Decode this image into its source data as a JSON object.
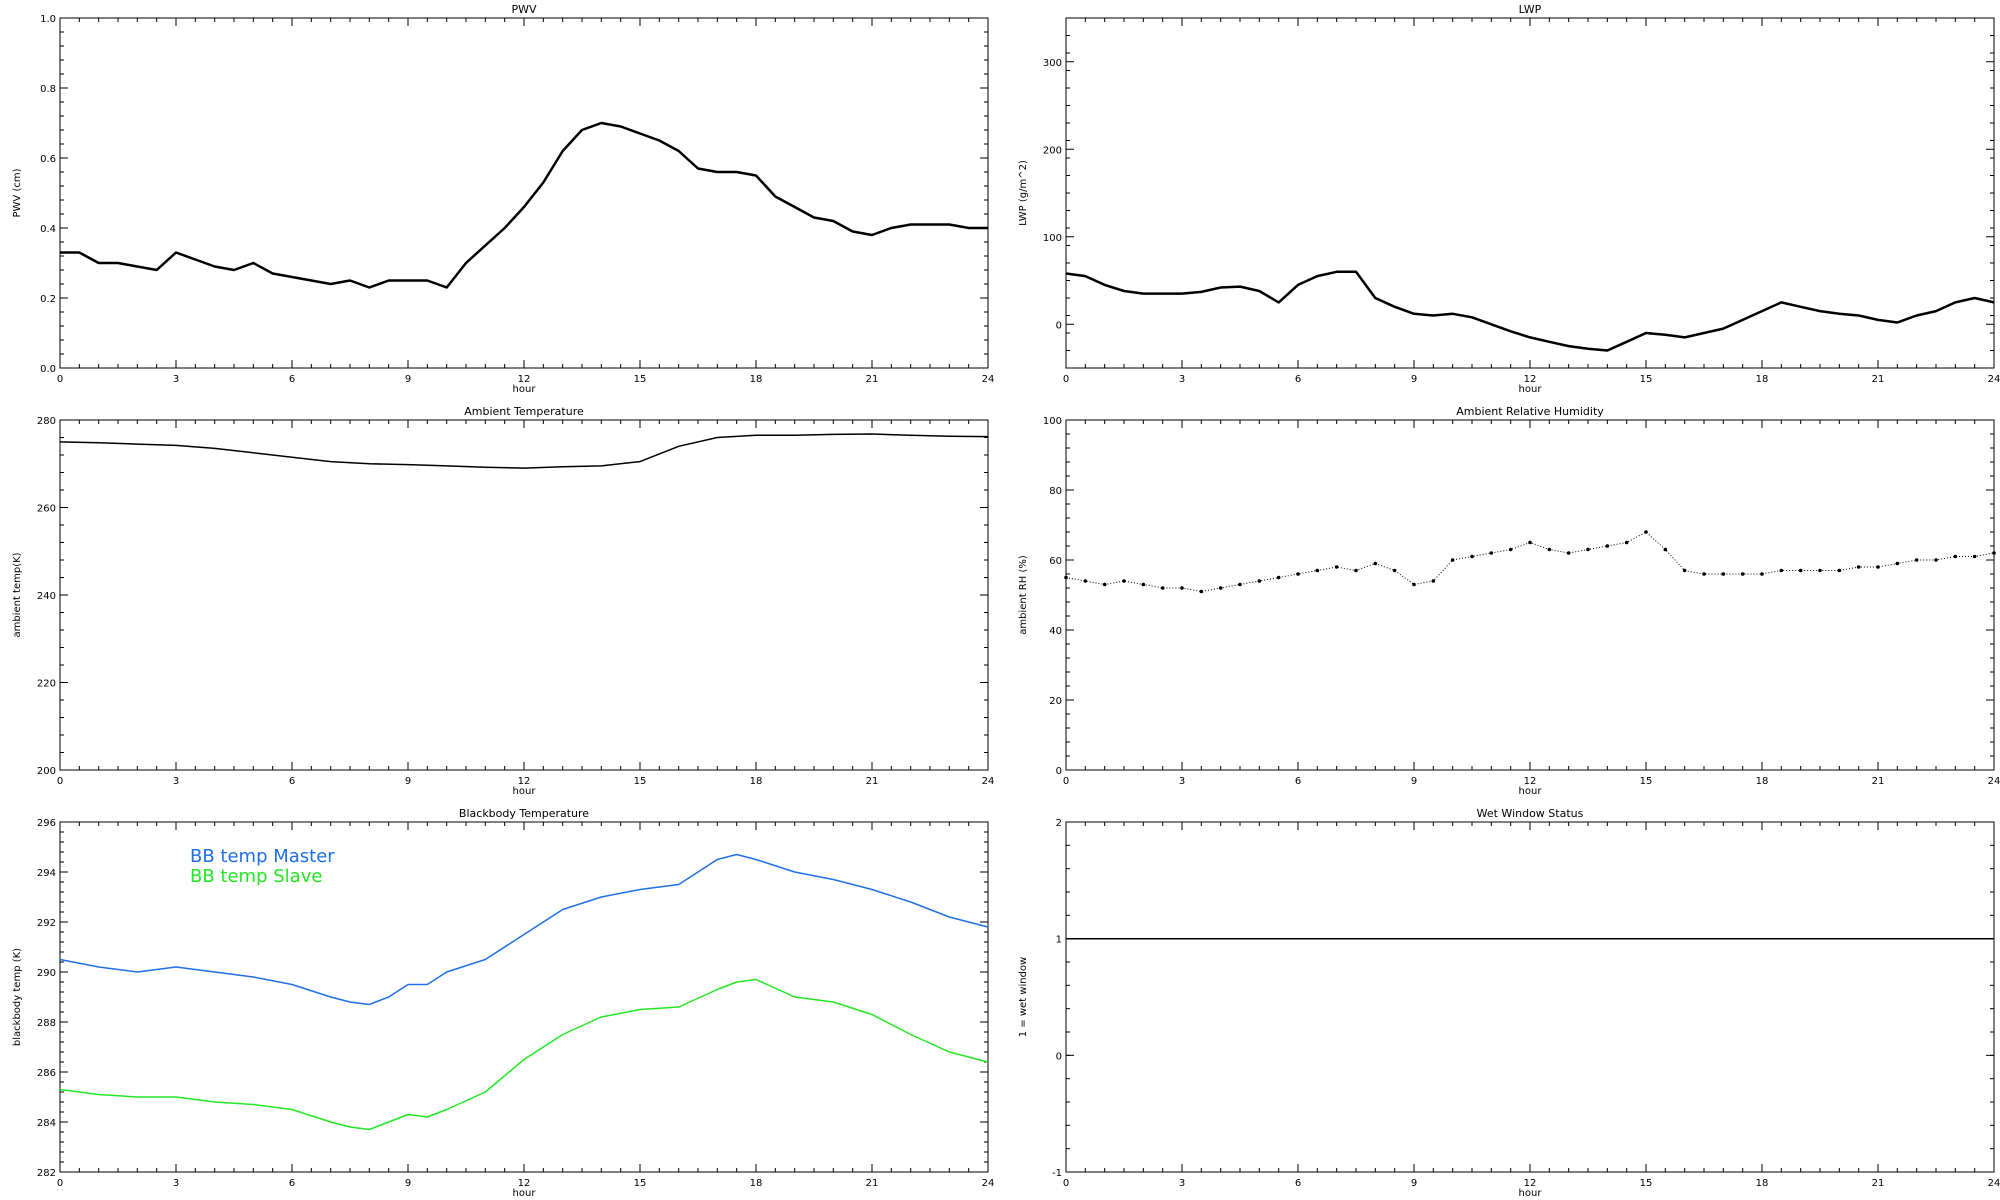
{
  "chart_data": [
    {
      "id": "pwv",
      "type": "line",
      "title": "PWV",
      "xlabel": "hour",
      "ylabel": "PWV (cm)",
      "xlim": [
        0,
        24
      ],
      "ylim": [
        0.0,
        1.0
      ],
      "xticks": [
        0,
        3,
        6,
        9,
        12,
        15,
        18,
        21,
        24
      ],
      "xtick_labels": [
        "0",
        "3",
        "6",
        "9",
        "12",
        "15",
        "18",
        "21",
        "24"
      ],
      "yticks": [
        0.0,
        0.2,
        0.4,
        0.6,
        0.8,
        1.0
      ],
      "ytick_labels": [
        "0.0",
        "0.2",
        "0.4",
        "0.6",
        "0.8",
        "1.0"
      ],
      "series": [
        {
          "color": "#000000",
          "x": [
            0,
            0.5,
            1,
            1.5,
            2,
            2.5,
            3,
            3.5,
            4,
            4.5,
            5,
            5.5,
            6,
            6.5,
            7,
            7.5,
            8,
            8.5,
            9,
            9.5,
            10,
            10.5,
            11,
            11.5,
            12,
            12.5,
            13,
            13.5,
            14,
            14.5,
            15,
            15.5,
            16,
            16.5,
            17,
            17.5,
            18,
            18.5,
            19,
            19.5,
            20,
            20.5,
            21,
            21.5,
            22,
            22.5,
            23,
            23.5,
            24
          ],
          "y": [
            0.33,
            0.33,
            0.3,
            0.3,
            0.29,
            0.28,
            0.33,
            0.31,
            0.29,
            0.28,
            0.3,
            0.27,
            0.26,
            0.25,
            0.24,
            0.25,
            0.23,
            0.25,
            0.25,
            0.25,
            0.23,
            0.3,
            0.35,
            0.4,
            0.46,
            0.53,
            0.62,
            0.68,
            0.7,
            0.69,
            0.67,
            0.65,
            0.62,
            0.57,
            0.56,
            0.56,
            0.55,
            0.49,
            0.46,
            0.43,
            0.42,
            0.39,
            0.38,
            0.4,
            0.41,
            0.41,
            0.41,
            0.4,
            0.4
          ]
        }
      ]
    },
    {
      "id": "lwp",
      "type": "line",
      "title": "LWP",
      "xlabel": "hour",
      "ylabel": "LWP (g/m^2)",
      "xlim": [
        0,
        24
      ],
      "ylim": [
        -50,
        350
      ],
      "xticks": [
        0,
        3,
        6,
        9,
        12,
        15,
        18,
        21,
        24
      ],
      "xtick_labels": [
        "0",
        "3",
        "6",
        "9",
        "12",
        "15",
        "18",
        "21",
        "24"
      ],
      "yticks": [
        0,
        100,
        200,
        300
      ],
      "ytick_labels": [
        "0",
        "100",
        "200",
        "300"
      ],
      "series": [
        {
          "color": "#000000",
          "x": [
            0,
            0.5,
            1,
            1.5,
            2,
            2.5,
            3,
            3.5,
            4,
            4.5,
            5,
            5.5,
            6,
            6.5,
            7,
            7.5,
            8,
            8.5,
            9,
            9.5,
            10,
            10.5,
            11,
            11.5,
            12,
            12.5,
            13,
            13.5,
            14,
            14.5,
            15,
            15.5,
            16,
            16.5,
            17,
            17.5,
            18,
            18.5,
            19,
            19.5,
            20,
            20.5,
            21,
            21.5,
            22,
            22.5,
            23,
            23.5,
            24
          ],
          "y": [
            58,
            55,
            45,
            38,
            35,
            35,
            35,
            37,
            42,
            43,
            38,
            25,
            45,
            55,
            60,
            60,
            30,
            20,
            12,
            10,
            12,
            8,
            0,
            -8,
            -15,
            -20,
            -25,
            -28,
            -30,
            -20,
            -10,
            -12,
            -15,
            -10,
            -5,
            5,
            15,
            25,
            20,
            15,
            12,
            10,
            5,
            2,
            10,
            15,
            25,
            30,
            25
          ]
        }
      ]
    },
    {
      "id": "ambient-temp",
      "type": "line",
      "title": "Ambient Temperature",
      "xlabel": "hour",
      "ylabel": "ambient temp(K)",
      "xlim": [
        0,
        24
      ],
      "ylim": [
        200,
        280
      ],
      "xticks": [
        0,
        3,
        6,
        9,
        12,
        15,
        18,
        21,
        24
      ],
      "xtick_labels": [
        "0",
        "3",
        "6",
        "9",
        "12",
        "15",
        "18",
        "21",
        "24"
      ],
      "yticks": [
        200,
        220,
        240,
        260,
        280
      ],
      "ytick_labels": [
        "200",
        "220",
        "240",
        "260",
        "280"
      ],
      "series": [
        {
          "color": "#000000",
          "x": [
            0,
            1,
            2,
            3,
            4,
            5,
            6,
            7,
            8,
            9,
            10,
            11,
            12,
            13,
            14,
            15,
            16,
            17,
            18,
            19,
            20,
            21,
            22,
            23,
            24
          ],
          "y": [
            275,
            274.8,
            274.5,
            274.2,
            273.5,
            272.5,
            271.5,
            270.5,
            270,
            269.8,
            269.5,
            269.2,
            269,
            269.3,
            269.5,
            270.5,
            274,
            276,
            276.5,
            276.5,
            276.7,
            276.8,
            276.5,
            276.3,
            276.2
          ]
        }
      ]
    },
    {
      "id": "ambient-rh",
      "type": "scatter",
      "title": "Ambient Relative Humidity",
      "xlabel": "hour",
      "ylabel": "ambient RH (%)",
      "xlim": [
        0,
        24
      ],
      "ylim": [
        0,
        100
      ],
      "xticks": [
        0,
        3,
        6,
        9,
        12,
        15,
        18,
        21,
        24
      ],
      "xtick_labels": [
        "0",
        "3",
        "6",
        "9",
        "12",
        "15",
        "18",
        "21",
        "24"
      ],
      "yticks": [
        0,
        20,
        40,
        60,
        80,
        100
      ],
      "ytick_labels": [
        "0",
        "20",
        "40",
        "60",
        "80",
        "100"
      ],
      "series": [
        {
          "color": "#000000",
          "x": [
            0,
            0.5,
            1,
            1.5,
            2,
            2.5,
            3,
            3.5,
            4,
            4.5,
            5,
            5.5,
            6,
            6.5,
            7,
            7.5,
            8,
            8.5,
            9,
            9.5,
            10,
            10.5,
            11,
            11.5,
            12,
            12.5,
            13,
            13.5,
            14,
            14.5,
            15,
            15.5,
            16,
            16.5,
            17,
            17.5,
            18,
            18.5,
            19,
            19.5,
            20,
            20.5,
            21,
            21.5,
            22,
            22.5,
            23,
            23.5,
            24
          ],
          "y": [
            55,
            54,
            53,
            54,
            53,
            52,
            52,
            51,
            52,
            53,
            54,
            55,
            56,
            57,
            58,
            57,
            59,
            57,
            53,
            54,
            60,
            61,
            62,
            63,
            65,
            63,
            62,
            63,
            64,
            65,
            68,
            63,
            57,
            56,
            56,
            56,
            56,
            57,
            57,
            57,
            57,
            58,
            58,
            59,
            60,
            60,
            61,
            61,
            62
          ]
        }
      ]
    },
    {
      "id": "bb-temp",
      "type": "line",
      "title": "Blackbody Temperature",
      "xlabel": "hour",
      "ylabel": "blackbody temp (K)",
      "xlim": [
        0,
        24
      ],
      "ylim": [
        282,
        296
      ],
      "xticks": [
        0,
        3,
        6,
        9,
        12,
        15,
        18,
        21,
        24
      ],
      "xtick_labels": [
        "0",
        "3",
        "6",
        "9",
        "12",
        "15",
        "18",
        "21",
        "24"
      ],
      "yticks": [
        282,
        284,
        286,
        288,
        290,
        292,
        294,
        296
      ],
      "ytick_labels": [
        "282",
        "284",
        "286",
        "288",
        "290",
        "292",
        "294",
        "296"
      ],
      "series": [
        {
          "name": "BB temp Master",
          "color": "#1e6fe8",
          "x": [
            0,
            1,
            2,
            3,
            4,
            5,
            6,
            7,
            7.5,
            8,
            8.5,
            9,
            9.5,
            10,
            11,
            12,
            13,
            14,
            15,
            16,
            17,
            17.5,
            18,
            19,
            20,
            21,
            22,
            23,
            24
          ],
          "y": [
            290.5,
            290.2,
            290.0,
            290.2,
            290.0,
            289.8,
            289.5,
            289.0,
            288.8,
            288.7,
            289.0,
            289.5,
            289.5,
            290.0,
            290.5,
            291.5,
            292.5,
            293.0,
            293.3,
            293.5,
            294.5,
            294.7,
            294.5,
            294.0,
            293.7,
            293.3,
            292.8,
            292.2,
            291.8
          ]
        },
        {
          "name": "BB temp Slave",
          "color": "#22e822",
          "x": [
            0,
            1,
            2,
            3,
            4,
            5,
            6,
            7,
            7.5,
            8,
            8.5,
            9,
            9.5,
            10,
            11,
            12,
            13,
            14,
            15,
            16,
            17,
            17.5,
            18,
            19,
            20,
            21,
            22,
            23,
            24
          ],
          "y": [
            285.3,
            285.1,
            285.0,
            285.0,
            284.8,
            284.7,
            284.5,
            284.0,
            283.8,
            283.7,
            284.0,
            284.3,
            284.2,
            284.5,
            285.2,
            286.5,
            287.5,
            288.2,
            288.5,
            288.6,
            289.3,
            289.6,
            289.7,
            289.0,
            288.8,
            288.3,
            287.5,
            286.8,
            286.4
          ]
        }
      ]
    },
    {
      "id": "wet-window",
      "type": "line",
      "title": "Wet Window Status",
      "xlabel": "hour",
      "ylabel": "1 = wet window",
      "xlim": [
        0,
        24
      ],
      "ylim": [
        -1,
        2
      ],
      "xticks": [
        0,
        3,
        6,
        9,
        12,
        15,
        18,
        21,
        24
      ],
      "xtick_labels": [
        "0",
        "3",
        "6",
        "9",
        "12",
        "15",
        "18",
        "21",
        "24"
      ],
      "yticks": [
        -1,
        0,
        1,
        2
      ],
      "ytick_labels": [
        "-1",
        "0",
        "1",
        "2"
      ],
      "series": [
        {
          "color": "#000000",
          "x": [
            0,
            24
          ],
          "y": [
            1,
            1
          ]
        }
      ]
    }
  ]
}
